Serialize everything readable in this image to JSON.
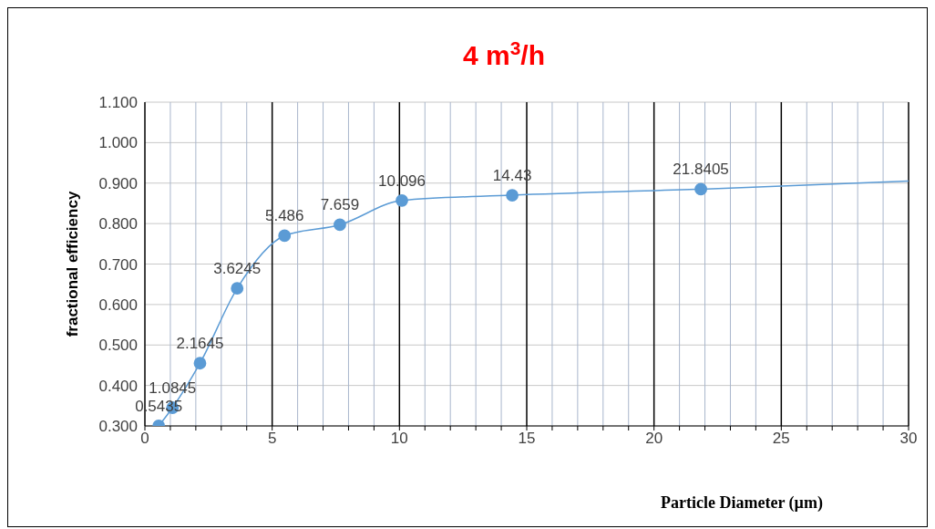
{
  "chart_data": {
    "type": "scatter",
    "title": "4 m$^{3}$/h",
    "xlabel": "Particle Diameter (µm)",
    "ylabel": "fractional efficiency",
    "xlim": [
      0,
      30
    ],
    "xticks": [
      0,
      {
        "value": 1,
        "label": null
      },
      {
        "value": 2,
        "label": null
      },
      {
        "value": 3,
        "label": null
      },
      {
        "value": 4,
        "label": null
      },
      5,
      {
        "value": 6,
        "label": null
      },
      {
        "value": 7,
        "label": null
      },
      {
        "value": 8,
        "label": null
      },
      {
        "value": 9,
        "label": null
      },
      10,
      {
        "value": 11,
        "label": null
      },
      {
        "value": 12,
        "label": null
      },
      {
        "value": 13,
        "label": null
      },
      {
        "value": 14,
        "label": null
      },
      15,
      {
        "value": 16,
        "label": null
      },
      {
        "value": 17,
        "label": null
      },
      {
        "value": 18,
        "label": null
      },
      {
        "value": 19,
        "label": null
      },
      20,
      {
        "value": 21,
        "label": null
      },
      {
        "value": 22,
        "label": null
      },
      {
        "value": 23,
        "label": null
      },
      {
        "value": 24,
        "label": null
      },
      25,
      {
        "value": 26,
        "label": null
      },
      {
        "value": 27,
        "label": null
      },
      {
        "value": 28,
        "label": null
      },
      {
        "value": 29,
        "label": null
      },
      30
    ],
    "ylim": [
      0.3,
      1.1
    ],
    "yticks": [
      {
        "value": 0.3,
        "label": "0.300"
      },
      {
        "value": 0.4,
        "label": "0.400"
      },
      {
        "value": 0.5,
        "label": "0.500"
      },
      {
        "value": 0.6,
        "label": "0.600"
      },
      {
        "value": 0.7,
        "label": "0.700"
      },
      {
        "value": 0.8,
        "label": "0.800"
      },
      {
        "value": 0.9,
        "label": "0.900"
      },
      {
        "value": 1.0,
        "label": "1.000"
      },
      {
        "value": 1.1,
        "label": "1.100"
      }
    ],
    "grid": true,
    "series": [
      {
        "type": "line",
        "color": "#5b9bd5",
        "marker": "none",
        "x": [
          0.5435,
          1.0845,
          2.1645,
          3.6245,
          5.486,
          7.659,
          10.096,
          14.43,
          21.8405,
          30
        ],
        "values": [
          0.3,
          0.345,
          0.455,
          0.64,
          0.77,
          0.797,
          0.857,
          0.87,
          0.885,
          0.905
        ]
      },
      {
        "color": "#5b9bd5",
        "marker": "circle",
        "x": [
          0.5435,
          1.0845,
          2.1645,
          3.6245,
          5.486,
          7.659,
          10.096,
          14.43,
          21.8405
        ],
        "values": [
          0.3,
          0.345,
          0.455,
          0.64,
          0.77,
          0.797,
          0.857,
          0.87,
          0.885
        ]
      }
    ],
    "annotations": [
      {
        "text": "0.5435",
        "x": 0.5435,
        "y": 0.3
      },
      {
        "text": "1.0845",
        "x": 1.0845,
        "y": 0.345
      },
      {
        "text": "2.1645",
        "x": 2.1645,
        "y": 0.455
      },
      {
        "text": "3.6245",
        "x": 3.6245,
        "y": 0.64
      },
      {
        "text": "5.486",
        "x": 5.486,
        "y": 0.77
      },
      {
        "text": "7.659",
        "x": 7.659,
        "y": 0.797
      },
      {
        "text": "10.096",
        "x": 10.096,
        "y": 0.857
      },
      {
        "text": "14.43",
        "x": 14.43,
        "y": 0.87
      },
      {
        "text": "21.8405",
        "x": 21.8405,
        "y": 0.885
      }
    ]
  }
}
